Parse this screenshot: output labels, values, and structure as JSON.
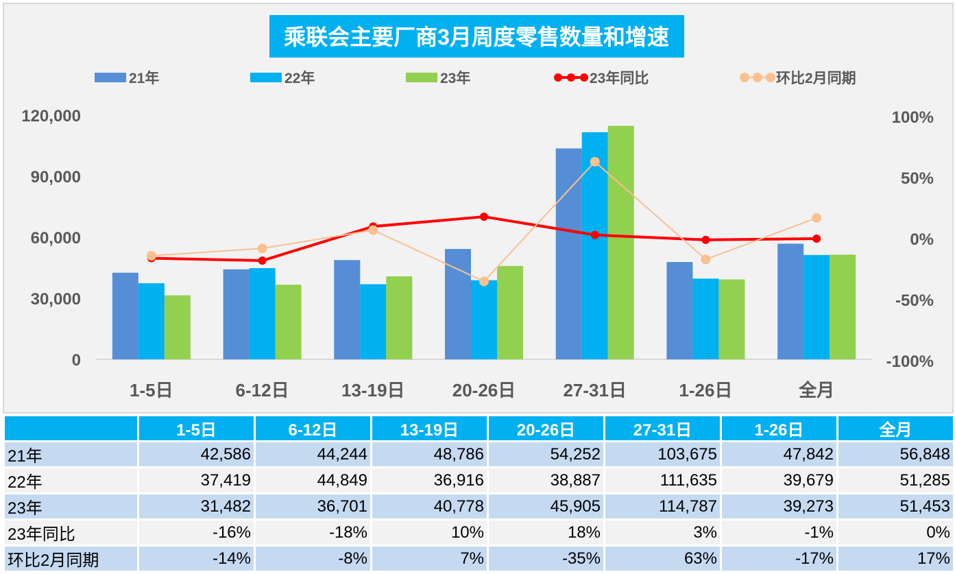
{
  "chart_data": {
    "type": "bar",
    "title": "乘联会主要厂商3月周度零售数量和增速",
    "categories": [
      "1-5日",
      "6-12日",
      "13-19日",
      "20-26日",
      "27-31日",
      "1-26日",
      "全月"
    ],
    "series": [
      {
        "name": "21年",
        "kind": "bar",
        "axis": "left",
        "color": "#558ed5",
        "values": [
          42586,
          44244,
          48786,
          54252,
          103675,
          47842,
          56848
        ]
      },
      {
        "name": "22年",
        "kind": "bar",
        "axis": "left",
        "color": "#00b0f0",
        "values": [
          37419,
          44849,
          36916,
          38887,
          111635,
          39679,
          51285
        ]
      },
      {
        "name": "23年",
        "kind": "bar",
        "axis": "left",
        "color": "#92d050",
        "values": [
          31482,
          36701,
          40778,
          45905,
          114787,
          39273,
          51453
        ]
      },
      {
        "name": "23年同比",
        "kind": "line",
        "axis": "right",
        "color": "#ff0000",
        "values": [
          -16,
          -18,
          10,
          18,
          3,
          -1,
          0
        ]
      },
      {
        "name": "环比2月同期",
        "kind": "line",
        "axis": "right",
        "color": "#fac090",
        "values": [
          -14,
          -8,
          7,
          -35,
          63,
          -17,
          17
        ]
      }
    ],
    "y_left": {
      "range": [
        0,
        120000
      ],
      "ticks": [
        "0",
        "30,000",
        "60,000",
        "90,000",
        "120,000"
      ]
    },
    "y_right": {
      "range": [
        -100,
        100
      ],
      "unit": "%",
      "ticks": [
        "-100%",
        "-50%",
        "0%",
        "50%",
        "100%"
      ]
    },
    "legend": "top",
    "grid": false
  },
  "table": {
    "header": [
      "",
      "1-5日",
      "6-12日",
      "13-19日",
      "20-26日",
      "27-31日",
      "1-26日",
      "全月"
    ],
    "rows": [
      [
        "21年",
        "42,586",
        "44,244",
        "48,786",
        "54,252",
        "103,675",
        "47,842",
        "56,848"
      ],
      [
        "22年",
        "37,419",
        "44,849",
        "36,916",
        "38,887",
        "111,635",
        "39,679",
        "51,285"
      ],
      [
        "23年",
        "31,482",
        "36,701",
        "40,778",
        "45,905",
        "114,787",
        "39,273",
        "51,453"
      ],
      [
        "23年同比",
        "-16%",
        "-18%",
        "10%",
        "18%",
        "3%",
        "-1%",
        "0%"
      ],
      [
        "环比2月同期",
        "-14%",
        "-8%",
        "7%",
        "-35%",
        "63%",
        "-17%",
        "17%"
      ]
    ]
  }
}
